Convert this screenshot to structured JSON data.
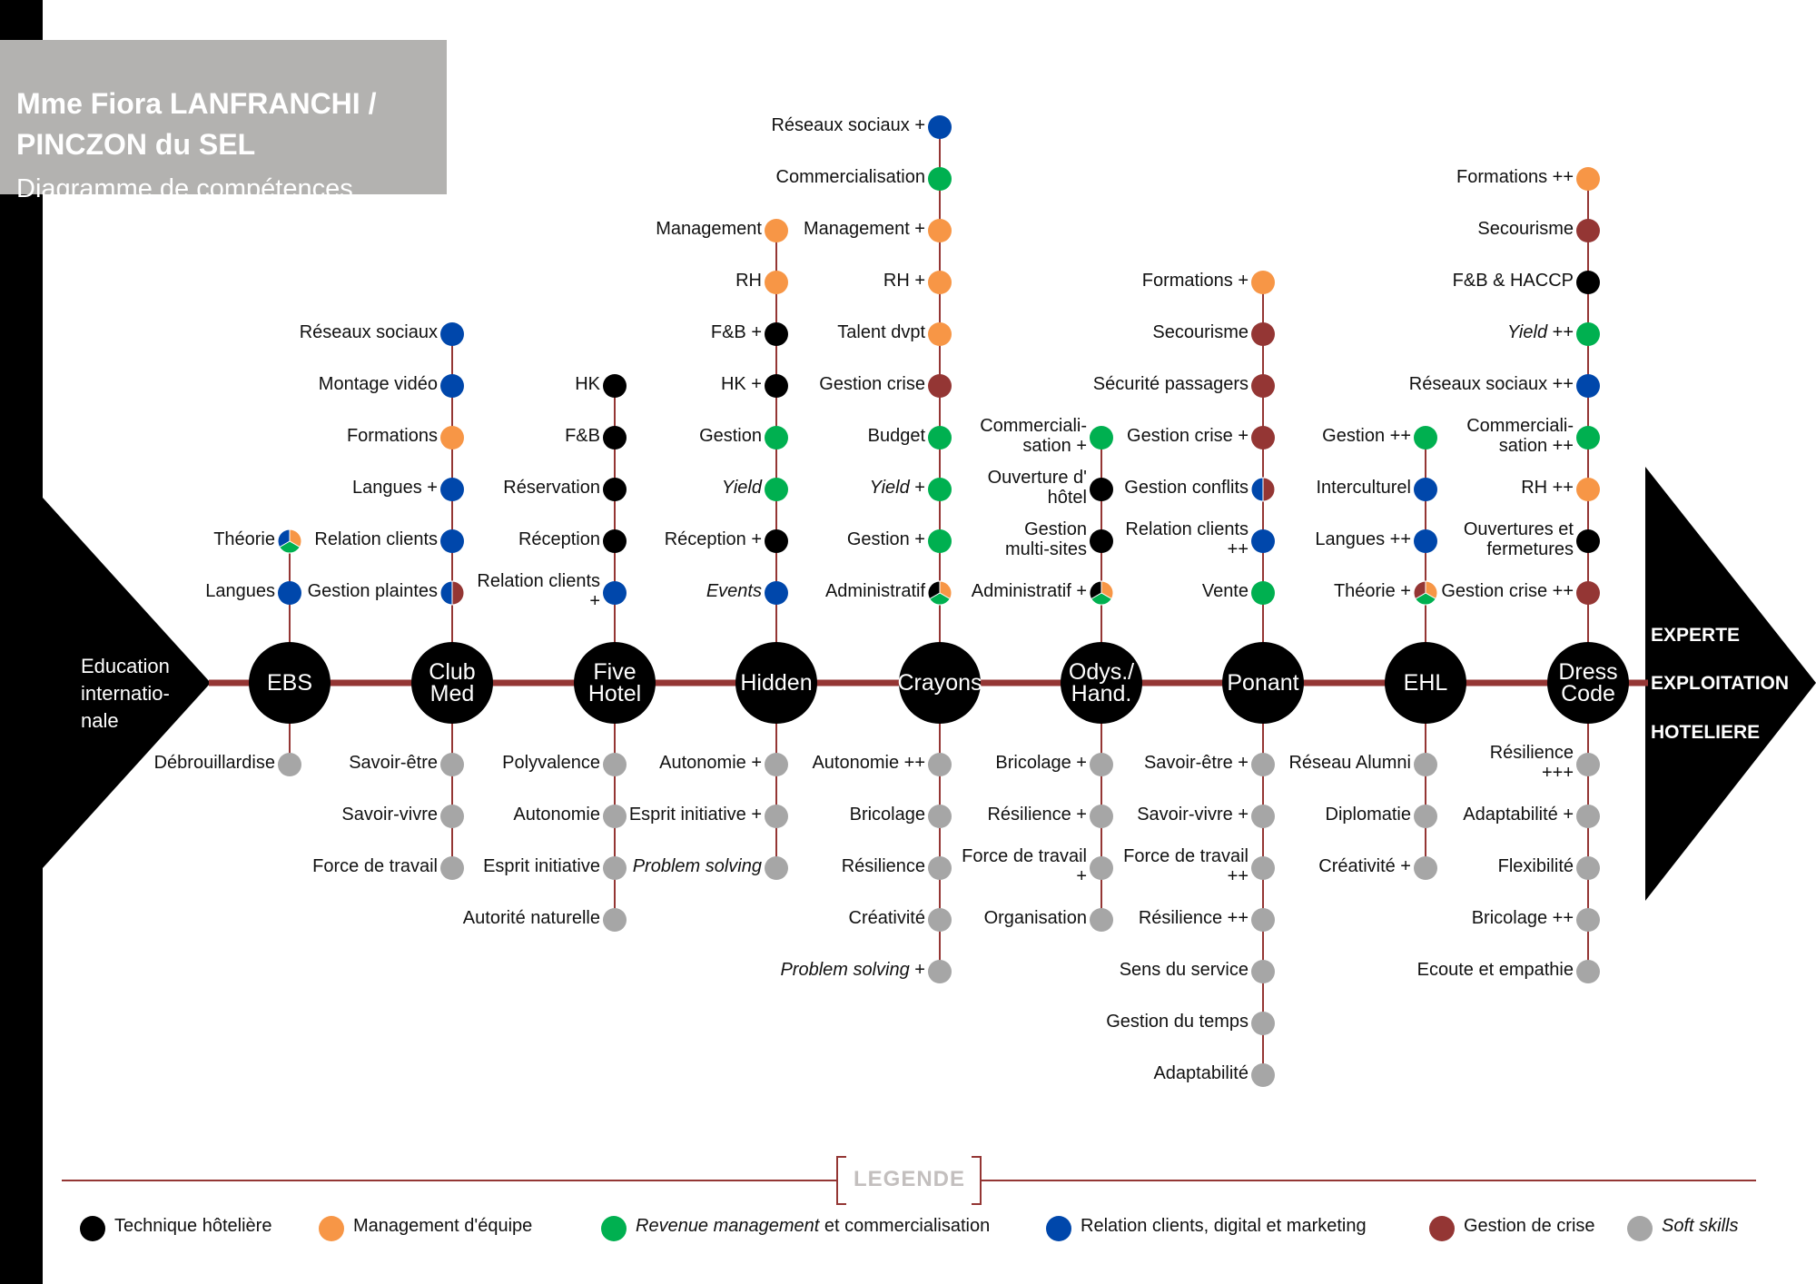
{
  "header": {
    "name_line1": "Mme Fiora LANFRANCHI /",
    "name_line2": "PINCZON du SEL",
    "subtitle": "Diagramme de compétences"
  },
  "start_label": [
    "Education",
    "internatio-",
    "nale"
  ],
  "end_label": [
    "EXPERTE",
    "EXPLOITATION",
    "HOTELIERE"
  ],
  "colors": {
    "technique": "#000000",
    "management": "#f79646",
    "revenue": "#00b050",
    "relation": "#0047ab",
    "crise": "#943634",
    "soft": "#a6a6a6",
    "line": "#943634",
    "title_bg": "#b3b2b0"
  },
  "stages": [
    {
      "id": "ebs",
      "label": [
        "EBS"
      ],
      "up": [
        {
          "text": [
            "Langues"
          ],
          "c": [
            "relation"
          ]
        },
        {
          "text": [
            "Théorie"
          ],
          "c": [
            "management",
            "revenue",
            "relation"
          ]
        }
      ],
      "down": [
        {
          "text": [
            "Débrouillardise"
          ],
          "c": [
            "soft"
          ]
        }
      ]
    },
    {
      "id": "clubmed",
      "label": [
        "Club",
        "Med"
      ],
      "up": [
        {
          "text": [
            "Gestion plaintes"
          ],
          "c": [
            "crise",
            "relation"
          ]
        },
        {
          "text": [
            "Relation clients"
          ],
          "c": [
            "relation"
          ]
        },
        {
          "text": [
            "Langues +"
          ],
          "c": [
            "relation"
          ]
        },
        {
          "text": [
            "Formations"
          ],
          "c": [
            "management"
          ]
        },
        {
          "text": [
            "Montage vidéo"
          ],
          "c": [
            "relation"
          ]
        },
        {
          "text": [
            "Réseaux sociaux"
          ],
          "c": [
            "relation"
          ]
        }
      ],
      "down": [
        {
          "text": [
            "Savoir-être"
          ],
          "c": [
            "soft"
          ]
        },
        {
          "text": [
            "Savoir-vivre"
          ],
          "c": [
            "soft"
          ]
        },
        {
          "text": [
            "Force de travail"
          ],
          "c": [
            "soft"
          ]
        }
      ]
    },
    {
      "id": "fivehotel",
      "label": [
        "Five",
        "Hotel"
      ],
      "up": [
        {
          "text": [
            "Relation clients",
            "+"
          ],
          "c": [
            "relation"
          ]
        },
        {
          "text": [
            "Réception"
          ],
          "c": [
            "technique"
          ]
        },
        {
          "text": [
            "Réservation"
          ],
          "c": [
            "technique"
          ]
        },
        {
          "text": [
            "F&B"
          ],
          "c": [
            "technique"
          ]
        },
        {
          "text": [
            "HK"
          ],
          "c": [
            "technique"
          ]
        }
      ],
      "down": [
        {
          "text": [
            "Polyvalence"
          ],
          "c": [
            "soft"
          ]
        },
        {
          "text": [
            "Autonomie"
          ],
          "c": [
            "soft"
          ]
        },
        {
          "text": [
            "Esprit initiative"
          ],
          "c": [
            "soft"
          ]
        },
        {
          "text": [
            "Autorité naturelle"
          ],
          "c": [
            "soft"
          ]
        }
      ]
    },
    {
      "id": "hidden",
      "label": [
        "Hidden"
      ],
      "up": [
        {
          "text": [
            "Events"
          ],
          "c": [
            "relation"
          ],
          "italic": true
        },
        {
          "text": [
            "Réception +"
          ],
          "c": [
            "technique"
          ]
        },
        {
          "text": [
            "Yield"
          ],
          "c": [
            "revenue"
          ],
          "italic": true
        },
        {
          "text": [
            "Gestion"
          ],
          "c": [
            "revenue"
          ]
        },
        {
          "text": [
            "HK +"
          ],
          "c": [
            "technique"
          ]
        },
        {
          "text": [
            "F&B +"
          ],
          "c": [
            "technique"
          ]
        },
        {
          "text": [
            "RH"
          ],
          "c": [
            "management"
          ]
        },
        {
          "text": [
            "Management"
          ],
          "c": [
            "management"
          ]
        }
      ],
      "down": [
        {
          "text": [
            "Autonomie +"
          ],
          "c": [
            "soft"
          ]
        },
        {
          "text": [
            "Esprit initiative +"
          ],
          "c": [
            "soft"
          ]
        },
        {
          "text": [
            "Problem solving"
          ],
          "c": [
            "soft"
          ],
          "italic": true
        }
      ]
    },
    {
      "id": "crayons",
      "label": [
        "Crayons"
      ],
      "up": [
        {
          "text": [
            "Administratif"
          ],
          "c": [
            "management",
            "revenue",
            "technique"
          ]
        },
        {
          "text": [
            "Gestion +"
          ],
          "c": [
            "revenue"
          ]
        },
        {
          "text": [
            "Yield +"
          ],
          "c": [
            "revenue"
          ],
          "italic_word": "Yield"
        },
        {
          "text": [
            "Budget"
          ],
          "c": [
            "revenue"
          ]
        },
        {
          "text": [
            "Gestion crise"
          ],
          "c": [
            "crise"
          ]
        },
        {
          "text": [
            "Talent dvpt"
          ],
          "c": [
            "management"
          ]
        },
        {
          "text": [
            "RH +"
          ],
          "c": [
            "management"
          ]
        },
        {
          "text": [
            "Management +"
          ],
          "c": [
            "management"
          ]
        },
        {
          "text": [
            "Commercialisation"
          ],
          "c": [
            "revenue"
          ]
        },
        {
          "text": [
            "Réseaux sociaux +"
          ],
          "c": [
            "relation"
          ]
        }
      ],
      "down": [
        {
          "text": [
            "Autonomie ++"
          ],
          "c": [
            "soft"
          ]
        },
        {
          "text": [
            "Bricolage"
          ],
          "c": [
            "soft"
          ]
        },
        {
          "text": [
            "Résilience"
          ],
          "c": [
            "soft"
          ]
        },
        {
          "text": [
            "Créativité"
          ],
          "c": [
            "soft"
          ]
        },
        {
          "text": [
            "Problem solving +"
          ],
          "c": [
            "soft"
          ],
          "italic_word": "Problem solving"
        }
      ]
    },
    {
      "id": "odyssey",
      "label": [
        "Odys./",
        "Hand."
      ],
      "up": [
        {
          "text": [
            "Administratif +"
          ],
          "c": [
            "management",
            "revenue",
            "technique"
          ]
        },
        {
          "text": [
            "Gestion",
            "multi-sites"
          ],
          "c": [
            "technique"
          ]
        },
        {
          "text": [
            "Ouverture d'",
            "hôtel"
          ],
          "c": [
            "technique"
          ]
        },
        {
          "text": [
            "Commerciali-",
            "sation +"
          ],
          "c": [
            "revenue"
          ]
        }
      ],
      "down": [
        {
          "text": [
            "Bricolage +"
          ],
          "c": [
            "soft"
          ]
        },
        {
          "text": [
            "Résilience +"
          ],
          "c": [
            "soft"
          ]
        },
        {
          "text": [
            "Force de travail",
            "+"
          ],
          "c": [
            "soft"
          ]
        },
        {
          "text": [
            "Organisation"
          ],
          "c": [
            "soft"
          ]
        }
      ]
    },
    {
      "id": "ponant",
      "label": [
        "Ponant"
      ],
      "up": [
        {
          "text": [
            "Vente"
          ],
          "c": [
            "revenue"
          ]
        },
        {
          "text": [
            "Relation clients",
            "++"
          ],
          "c": [
            "relation"
          ]
        },
        {
          "text": [
            "Gestion conflits"
          ],
          "c": [
            "crise",
            "relation"
          ]
        },
        {
          "text": [
            "Gestion crise +"
          ],
          "c": [
            "crise"
          ]
        },
        {
          "text": [
            "Sécurité passagers"
          ],
          "c": [
            "crise"
          ]
        },
        {
          "text": [
            "Secourisme"
          ],
          "c": [
            "crise"
          ]
        },
        {
          "text": [
            "Formations +"
          ],
          "c": [
            "management"
          ]
        }
      ],
      "down": [
        {
          "text": [
            "Savoir-être +"
          ],
          "c": [
            "soft"
          ]
        },
        {
          "text": [
            "Savoir-vivre +"
          ],
          "c": [
            "soft"
          ]
        },
        {
          "text": [
            "Force de travail",
            "++"
          ],
          "c": [
            "soft"
          ]
        },
        {
          "text": [
            "Résilience ++"
          ],
          "c": [
            "soft"
          ]
        },
        {
          "text": [
            "Sens du service"
          ],
          "c": [
            "soft"
          ]
        },
        {
          "text": [
            "Gestion du temps"
          ],
          "c": [
            "soft"
          ]
        },
        {
          "text": [
            "Adaptabilité"
          ],
          "c": [
            "soft"
          ]
        }
      ]
    },
    {
      "id": "ehl",
      "label": [
        "EHL"
      ],
      "up": [
        {
          "text": [
            "Théorie +"
          ],
          "c": [
            "management",
            "revenue",
            "crise"
          ]
        },
        {
          "text": [
            "Langues ++"
          ],
          "c": [
            "relation"
          ]
        },
        {
          "text": [
            "Interculturel"
          ],
          "c": [
            "relation"
          ]
        },
        {
          "text": [
            "Gestion ++"
          ],
          "c": [
            "revenue"
          ]
        }
      ],
      "down": [
        {
          "text": [
            "Réseau Alumni"
          ],
          "c": [
            "soft"
          ]
        },
        {
          "text": [
            "Diplomatie"
          ],
          "c": [
            "soft"
          ]
        },
        {
          "text": [
            "Créativité +"
          ],
          "c": [
            "soft"
          ]
        }
      ]
    },
    {
      "id": "dresscode",
      "label": [
        "Dress",
        "Code"
      ],
      "up": [
        {
          "text": [
            "Gestion crise ++"
          ],
          "c": [
            "crise"
          ]
        },
        {
          "text": [
            "Ouvertures et",
            "fermetures"
          ],
          "c": [
            "technique"
          ]
        },
        {
          "text": [
            "RH ++"
          ],
          "c": [
            "management"
          ]
        },
        {
          "text": [
            "Commerciali-",
            "sation ++"
          ],
          "c": [
            "revenue"
          ]
        },
        {
          "text": [
            "Réseaux sociaux ++"
          ],
          "c": [
            "relation"
          ]
        },
        {
          "text": [
            "Yield ++"
          ],
          "c": [
            "revenue"
          ],
          "italic_word": "Yield"
        },
        {
          "text": [
            "F&B & HACCP"
          ],
          "c": [
            "technique"
          ]
        },
        {
          "text": [
            "Secourisme"
          ],
          "c": [
            "crise"
          ]
        },
        {
          "text": [
            "Formations ++"
          ],
          "c": [
            "management"
          ]
        }
      ],
      "down": [
        {
          "text": [
            "Résilience",
            "+++"
          ],
          "c": [
            "soft"
          ]
        },
        {
          "text": [
            "Adaptabilité +"
          ],
          "c": [
            "soft"
          ]
        },
        {
          "text": [
            "Flexibilité"
          ],
          "c": [
            "soft"
          ]
        },
        {
          "text": [
            "Bricolage ++"
          ],
          "c": [
            "soft"
          ]
        },
        {
          "text": [
            "Ecoute et empathie"
          ],
          "c": [
            "soft"
          ]
        }
      ]
    }
  ],
  "legend": {
    "title": "LEGENDE",
    "items": [
      {
        "key": "technique",
        "text": "Technique hôtelière"
      },
      {
        "key": "management",
        "text": "Management d'équipe"
      },
      {
        "key": "revenue",
        "text_italic": "Revenue management",
        "text": " et commercialisation"
      },
      {
        "key": "relation",
        "text": "Relation clients, digital et marketing"
      },
      {
        "key": "crise",
        "text": "Gestion de crise"
      },
      {
        "key": "soft",
        "text_italic": "Soft skills",
        "text": ""
      }
    ]
  }
}
